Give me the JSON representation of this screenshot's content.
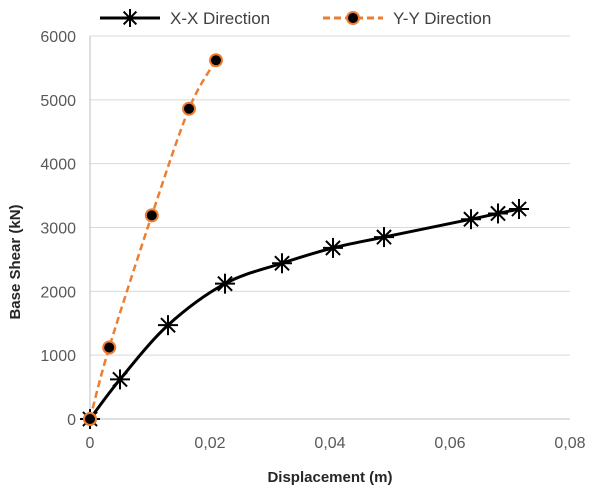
{
  "chart_data": {
    "type": "line",
    "xlabel": "Displacement (m)",
    "ylabel": "Base Shear  (kN)",
    "xlim": [
      0,
      0.08
    ],
    "ylim": [
      0,
      6000
    ],
    "x_ticks": [
      0,
      0.02,
      0.04,
      0.06,
      0.08
    ],
    "x_tick_labels": [
      "0",
      "0,02",
      "0,04",
      "0,06",
      "0,08"
    ],
    "y_ticks": [
      0,
      1000,
      2000,
      3000,
      4000,
      5000,
      6000
    ],
    "y_tick_labels": [
      "0",
      "1000",
      "2000",
      "3000",
      "4000",
      "5000",
      "6000"
    ],
    "grid": "horizontal",
    "legend_position": "top",
    "series": [
      {
        "name": "X-X Direction",
        "color": "#000000",
        "marker": "asterisk",
        "line": "solid",
        "points": [
          [
            0,
            0
          ],
          [
            0.005,
            620
          ],
          [
            0.013,
            1470
          ],
          [
            0.0225,
            2120
          ],
          [
            0.032,
            2440
          ],
          [
            0.0405,
            2680
          ],
          [
            0.049,
            2850
          ],
          [
            0.0635,
            3130
          ],
          [
            0.068,
            3220
          ],
          [
            0.0715,
            3290
          ]
        ]
      },
      {
        "name": "Y-Y Direction",
        "color": "#ED7D31",
        "marker": "circle",
        "line": "dashed",
        "points": [
          [
            0,
            0
          ],
          [
            0.0032,
            1120
          ],
          [
            0.0103,
            3190
          ],
          [
            0.0165,
            4860
          ],
          [
            0.021,
            5620
          ]
        ]
      }
    ]
  }
}
